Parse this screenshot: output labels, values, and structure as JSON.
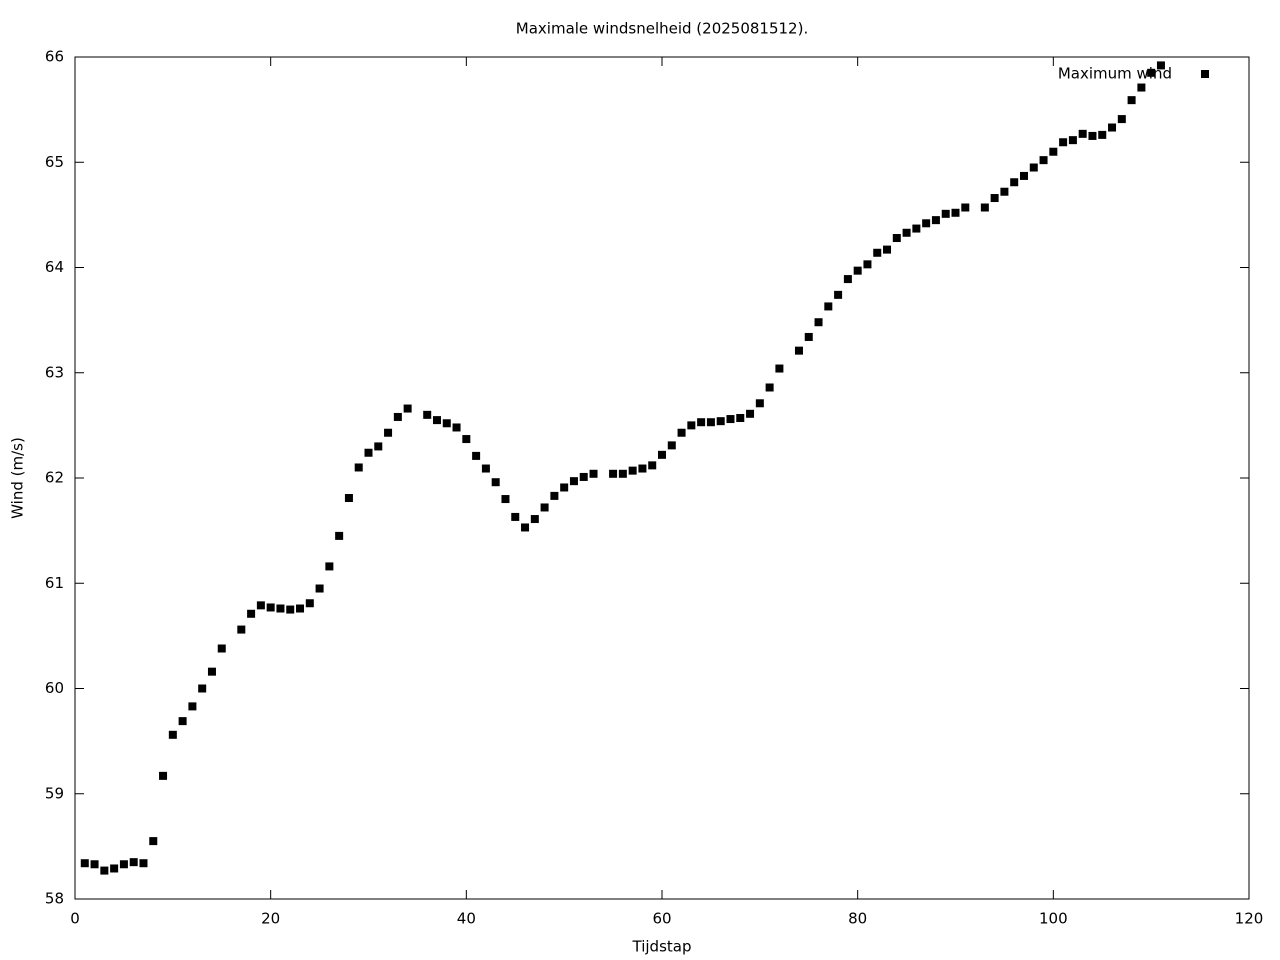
{
  "chart_data": {
    "type": "scatter",
    "title": "Maximale windsnelheid (2025081512).",
    "x_label": "Tijdstap",
    "y_label": "Wind (m/s)",
    "series": [
      {
        "name": "Maximum wind",
        "color": "#000000",
        "x": [
          1,
          2,
          3,
          4,
          5,
          6,
          7,
          8,
          9,
          10,
          11,
          12,
          13,
          14,
          15,
          17,
          18,
          19,
          20,
          21,
          22,
          23,
          24,
          25,
          26,
          27,
          28,
          29,
          30,
          31,
          32,
          33,
          34,
          36,
          37,
          38,
          39,
          40,
          41,
          42,
          43,
          44,
          45,
          46,
          47,
          48,
          49,
          50,
          51,
          52,
          53,
          55,
          56,
          57,
          58,
          59,
          60,
          61,
          62,
          63,
          64,
          65,
          66,
          67,
          68,
          69,
          70,
          71,
          72,
          74,
          75,
          76,
          77,
          78,
          79,
          80,
          81,
          82,
          83,
          84,
          85,
          86,
          87,
          88,
          89,
          90,
          91,
          93,
          94,
          95,
          96,
          97,
          98,
          99,
          100,
          101,
          102,
          103,
          104,
          105,
          106,
          107,
          108,
          109,
          110,
          111
        ],
        "values": [
          58.34,
          58.33,
          58.27,
          58.29,
          58.33,
          58.35,
          58.34,
          58.55,
          59.17,
          59.56,
          59.69,
          59.83,
          60.0,
          60.16,
          60.38,
          60.56,
          60.71,
          60.79,
          60.77,
          60.76,
          60.75,
          60.76,
          60.81,
          60.95,
          61.16,
          61.45,
          61.81,
          62.1,
          62.24,
          62.3,
          62.43,
          62.58,
          62.66,
          62.6,
          62.55,
          62.52,
          62.48,
          62.37,
          62.21,
          62.09,
          61.96,
          61.8,
          61.63,
          61.53,
          61.61,
          61.72,
          61.83,
          61.91,
          61.97,
          62.01,
          62.04,
          62.04,
          62.04,
          62.07,
          62.09,
          62.12,
          62.22,
          62.31,
          62.43,
          62.5,
          62.53,
          62.53,
          62.54,
          62.56,
          62.57,
          62.61,
          62.71,
          62.86,
          63.04,
          63.21,
          63.34,
          63.48,
          63.63,
          63.74,
          63.89,
          63.97,
          64.03,
          64.14,
          64.17,
          64.28,
          64.33,
          64.37,
          64.42,
          64.45,
          64.51,
          64.52,
          64.57,
          64.57,
          64.66,
          64.72,
          64.81,
          64.87,
          64.95,
          65.02,
          65.1,
          65.19,
          65.21,
          65.27,
          65.25,
          65.26,
          65.33,
          65.41,
          65.59,
          65.71,
          65.85,
          65.92
        ]
      }
    ],
    "xlim": [
      0,
      120
    ],
    "xticks": [
      0,
      20,
      40,
      60,
      80,
      100,
      120
    ],
    "ylim": [
      58,
      66
    ],
    "yticks": [
      58,
      59,
      60,
      61,
      62,
      63,
      64,
      65,
      66
    ],
    "grid": false,
    "legend": "top-right"
  }
}
